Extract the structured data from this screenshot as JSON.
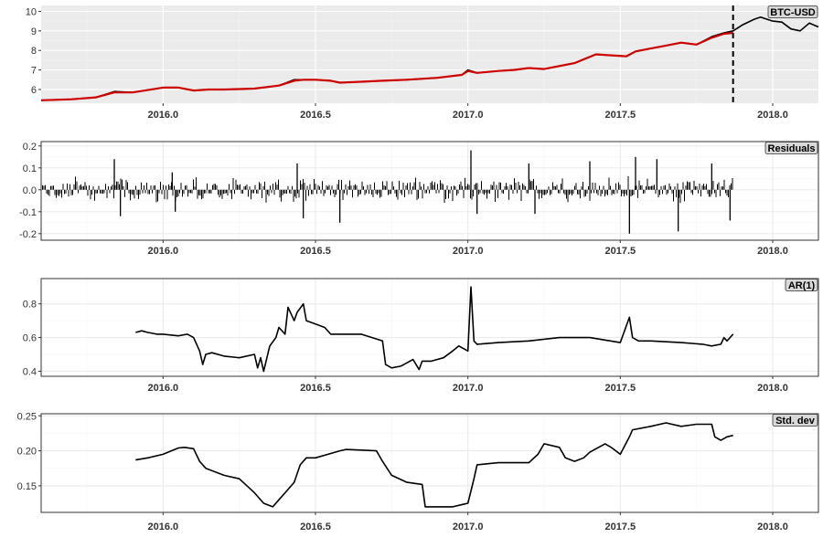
{
  "chart_data": [
    {
      "type": "line",
      "title": "BTC-USD",
      "xlabel": "",
      "ylabel": "",
      "xlim": [
        2015.6,
        2018.15
      ],
      "ylim": [
        5.3,
        10.3
      ],
      "yticks": [
        6,
        7,
        8,
        9,
        10
      ],
      "xticks": [
        2016.0,
        2016.5,
        2017.0,
        2017.5,
        2018.0
      ],
      "background": "#ebebeb",
      "grid": true,
      "vline_dashed_x": 2017.87,
      "series": [
        {
          "color": "#000000",
          "x": [
            2015.6,
            2015.7,
            2015.78,
            2015.84,
            2015.9,
            2016.0,
            2016.05,
            2016.1,
            2016.15,
            2016.2,
            2016.3,
            2016.38,
            2016.43,
            2016.46,
            2016.5,
            2016.55,
            2016.58,
            2016.65,
            2016.72,
            2016.8,
            2016.9,
            2016.98,
            2017.0,
            2017.03,
            2017.1,
            2017.15,
            2017.2,
            2017.25,
            2017.3,
            2017.35,
            2017.42,
            2017.47,
            2017.52,
            2017.55,
            2017.6,
            2017.65,
            2017.7,
            2017.75,
            2017.8,
            2017.84,
            2017.87,
            2017.9,
            2017.94,
            2017.96,
            2018.0,
            2018.03,
            2018.06,
            2018.09,
            2018.12,
            2018.15
          ],
          "y": [
            5.45,
            5.5,
            5.6,
            5.9,
            5.85,
            6.1,
            6.1,
            5.95,
            6.0,
            6.0,
            6.05,
            6.2,
            6.5,
            6.5,
            6.5,
            6.45,
            6.35,
            6.4,
            6.45,
            6.5,
            6.6,
            6.75,
            7.0,
            6.85,
            6.95,
            7.0,
            7.1,
            7.05,
            7.2,
            7.35,
            7.8,
            7.75,
            7.7,
            7.95,
            8.1,
            8.25,
            8.4,
            8.3,
            8.7,
            8.9,
            9.0,
            9.3,
            9.6,
            9.7,
            9.5,
            9.45,
            9.1,
            9.0,
            9.4,
            9.2
          ]
        },
        {
          "color": "#cc0000",
          "x": [
            2015.6,
            2015.7,
            2015.78,
            2015.84,
            2015.9,
            2016.0,
            2016.05,
            2016.1,
            2016.15,
            2016.2,
            2016.3,
            2016.38,
            2016.43,
            2016.46,
            2016.5,
            2016.55,
            2016.58,
            2016.65,
            2016.72,
            2016.8,
            2016.9,
            2016.98,
            2017.0,
            2017.03,
            2017.1,
            2017.15,
            2017.2,
            2017.25,
            2017.3,
            2017.35,
            2017.42,
            2017.47,
            2017.52,
            2017.55,
            2017.6,
            2017.65,
            2017.7,
            2017.75,
            2017.8,
            2017.84,
            2017.87
          ],
          "y": [
            5.45,
            5.5,
            5.6,
            5.85,
            5.85,
            6.1,
            6.1,
            5.95,
            6.0,
            6.0,
            6.05,
            6.2,
            6.45,
            6.5,
            6.5,
            6.45,
            6.35,
            6.4,
            6.45,
            6.5,
            6.6,
            6.75,
            6.95,
            6.85,
            6.95,
            7.0,
            7.1,
            7.05,
            7.2,
            7.35,
            7.8,
            7.75,
            7.7,
            7.95,
            8.1,
            8.25,
            8.4,
            8.3,
            8.65,
            8.85,
            8.9
          ]
        }
      ]
    },
    {
      "type": "bar",
      "title": "Residuals",
      "xlabel": "",
      "ylabel": "",
      "xlim": [
        2015.6,
        2018.15
      ],
      "ylim": [
        -0.23,
        0.22
      ],
      "yticks": [
        -0.2,
        -0.1,
        0.0,
        0.1,
        0.2
      ],
      "ytick_labels": [
        "-0.2",
        "-0.1",
        "0.0",
        "0.1",
        "0.2"
      ],
      "xticks": [
        2016.0,
        2016.5,
        2017.0,
        2017.5,
        2018.0
      ],
      "background": "#ffffff",
      "grid": true,
      "x_range": [
        2015.6,
        2017.87
      ],
      "spikes": [
        {
          "x": 2015.84,
          "y": 0.14
        },
        {
          "x": 2015.86,
          "y": -0.12
        },
        {
          "x": 2016.03,
          "y": 0.08
        },
        {
          "x": 2016.04,
          "y": -0.1
        },
        {
          "x": 2016.44,
          "y": 0.12
        },
        {
          "x": 2016.46,
          "y": -0.13
        },
        {
          "x": 2016.58,
          "y": -0.15
        },
        {
          "x": 2017.01,
          "y": 0.18
        },
        {
          "x": 2017.03,
          "y": -0.11
        },
        {
          "x": 2017.2,
          "y": 0.12
        },
        {
          "x": 2017.22,
          "y": -0.11
        },
        {
          "x": 2017.4,
          "y": 0.13
        },
        {
          "x": 2017.53,
          "y": -0.2
        },
        {
          "x": 2017.55,
          "y": 0.15
        },
        {
          "x": 2017.69,
          "y": -0.19
        },
        {
          "x": 2017.62,
          "y": 0.14
        },
        {
          "x": 2017.8,
          "y": 0.12
        },
        {
          "x": 2017.86,
          "y": -0.14
        }
      ]
    },
    {
      "type": "line",
      "title": "AR(1)",
      "xlabel": "",
      "ylabel": "",
      "xlim": [
        2015.6,
        2018.15
      ],
      "ylim": [
        0.37,
        0.95
      ],
      "yticks": [
        0.4,
        0.6,
        0.8
      ],
      "ytick_labels": [
        "0.4",
        "0.6",
        "0.8"
      ],
      "xticks": [
        2016.0,
        2016.5,
        2017.0,
        2017.5,
        2018.0
      ],
      "background": "#ffffff",
      "grid": true,
      "series": [
        {
          "color": "#000000",
          "x": [
            2015.91,
            2015.93,
            2015.95,
            2015.98,
            2016.0,
            2016.05,
            2016.08,
            2016.1,
            2016.12,
            2016.13,
            2016.14,
            2016.16,
            2016.2,
            2016.25,
            2016.3,
            2016.31,
            2016.32,
            2016.33,
            2016.35,
            2016.37,
            2016.38,
            2016.4,
            2016.41,
            2016.43,
            2016.44,
            2016.46,
            2016.47,
            2016.5,
            2016.53,
            2016.55,
            2016.6,
            2016.65,
            2016.72,
            2016.73,
            2016.75,
            2016.78,
            2016.82,
            2016.84,
            2016.85,
            2016.88,
            2016.92,
            2016.95,
            2016.97,
            2017.0,
            2017.01,
            2017.02,
            2017.03,
            2017.1,
            2017.2,
            2017.3,
            2017.4,
            2017.5,
            2017.53,
            2017.54,
            2017.56,
            2017.6,
            2017.7,
            2017.77,
            2017.8,
            2017.83,
            2017.84,
            2017.85,
            2017.87
          ],
          "y": [
            0.63,
            0.64,
            0.63,
            0.62,
            0.62,
            0.61,
            0.62,
            0.6,
            0.52,
            0.44,
            0.5,
            0.51,
            0.49,
            0.48,
            0.5,
            0.42,
            0.48,
            0.4,
            0.55,
            0.6,
            0.66,
            0.62,
            0.78,
            0.7,
            0.75,
            0.8,
            0.7,
            0.68,
            0.66,
            0.62,
            0.62,
            0.62,
            0.58,
            0.44,
            0.42,
            0.43,
            0.47,
            0.41,
            0.46,
            0.46,
            0.48,
            0.52,
            0.55,
            0.52,
            0.9,
            0.58,
            0.56,
            0.57,
            0.58,
            0.6,
            0.6,
            0.57,
            0.72,
            0.6,
            0.58,
            0.58,
            0.57,
            0.56,
            0.55,
            0.56,
            0.6,
            0.58,
            0.62
          ]
        }
      ]
    },
    {
      "type": "line",
      "title": "Std. dev",
      "xlabel": "",
      "ylabel": "",
      "xlim": [
        2015.6,
        2018.15
      ],
      "ylim": [
        0.112,
        0.253
      ],
      "yticks": [
        0.15,
        0.2,
        0.25
      ],
      "ytick_labels": [
        "0.15",
        "0.20",
        "0.25"
      ],
      "xticks": [
        2016.0,
        2016.5,
        2017.0,
        2017.5,
        2018.0
      ],
      "background": "#ffffff",
      "grid": true,
      "series": [
        {
          "color": "#000000",
          "x": [
            2015.91,
            2015.95,
            2016.0,
            2016.05,
            2016.07,
            2016.1,
            2016.12,
            2016.14,
            2016.2,
            2016.25,
            2016.3,
            2016.33,
            2016.36,
            2016.38,
            2016.4,
            2016.43,
            2016.45,
            2016.47,
            2016.5,
            2016.58,
            2016.6,
            2016.7,
            2016.72,
            2016.75,
            2016.8,
            2016.85,
            2016.86,
            2016.9,
            2016.95,
            2017.0,
            2017.02,
            2017.03,
            2017.1,
            2017.15,
            2017.2,
            2017.23,
            2017.25,
            2017.3,
            2017.32,
            2017.35,
            2017.38,
            2017.4,
            2017.45,
            2017.47,
            2017.5,
            2017.53,
            2017.54,
            2017.6,
            2017.65,
            2017.7,
            2017.75,
            2017.8,
            2017.81,
            2017.83,
            2017.85,
            2017.87
          ],
          "y": [
            0.187,
            0.19,
            0.195,
            0.204,
            0.205,
            0.203,
            0.185,
            0.175,
            0.165,
            0.16,
            0.14,
            0.125,
            0.12,
            0.13,
            0.14,
            0.155,
            0.18,
            0.19,
            0.19,
            0.2,
            0.202,
            0.2,
            0.185,
            0.165,
            0.155,
            0.152,
            0.12,
            0.12,
            0.12,
            0.125,
            0.16,
            0.18,
            0.183,
            0.183,
            0.183,
            0.195,
            0.21,
            0.205,
            0.19,
            0.185,
            0.19,
            0.198,
            0.21,
            0.205,
            0.195,
            0.22,
            0.23,
            0.235,
            0.24,
            0.235,
            0.238,
            0.238,
            0.22,
            0.215,
            0.22,
            0.222
          ]
        }
      ]
    }
  ]
}
